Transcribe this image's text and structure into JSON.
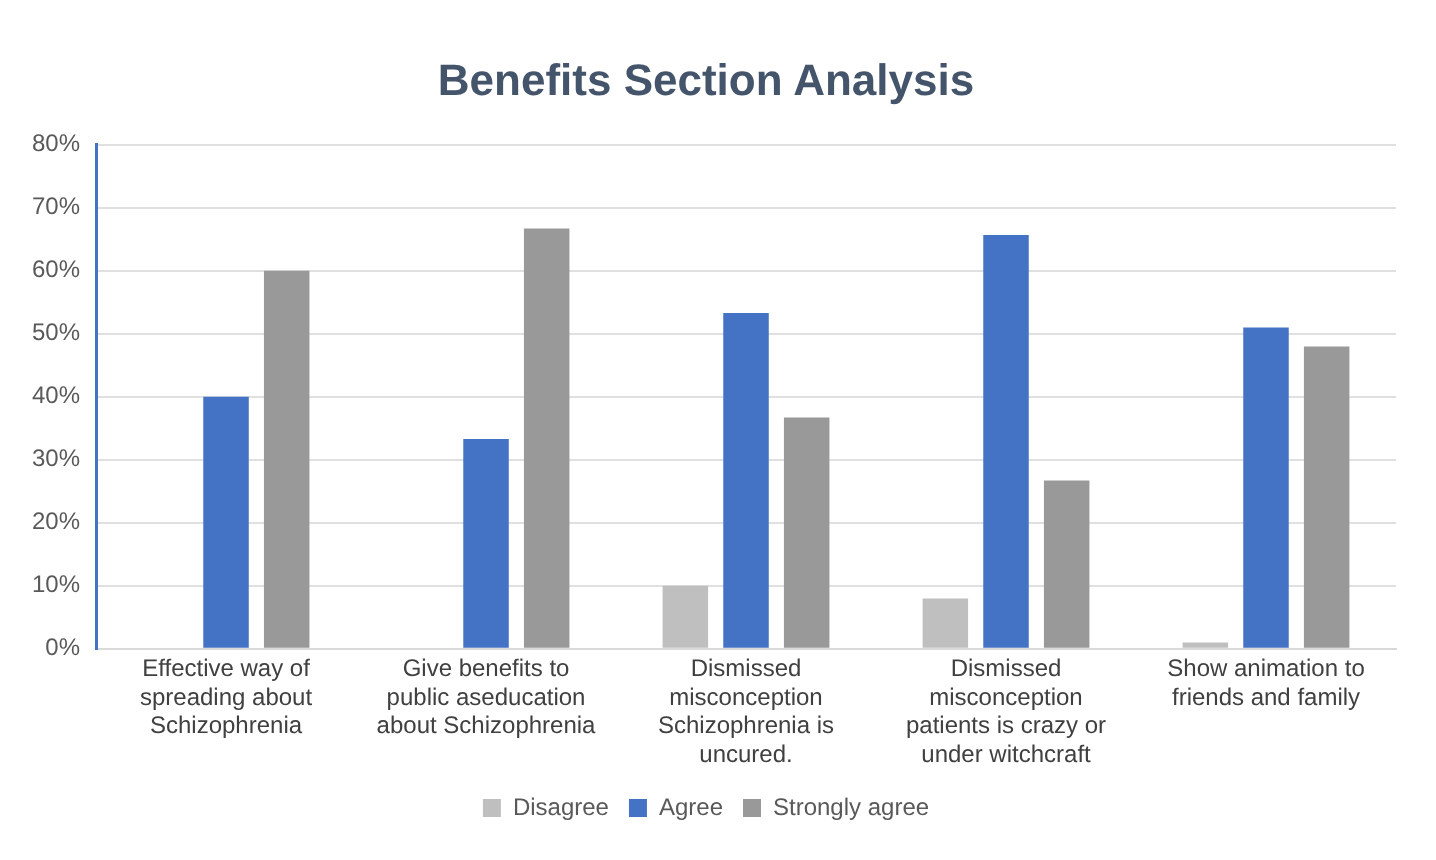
{
  "chart_data": {
    "type": "bar",
    "title": "Benefits Section Analysis",
    "categories": [
      "Effective way of spreading about Schizophrenia",
      "Give benefits to public aseducation about Schizophrenia",
      "Dismissed misconception Schizophrenia is uncured.",
      "Dismissed misconception patients is crazy or under witchcraft",
      "Show animation to friends and family"
    ],
    "series": [
      {
        "name": "Disagree",
        "color": "#bfbfbf",
        "values": [
          0,
          0,
          10,
          8,
          1
        ]
      },
      {
        "name": "Agree",
        "color": "#4472c4",
        "values": [
          40,
          33.3,
          53.3,
          65.7,
          51
        ]
      },
      {
        "name": "Strongly agree",
        "color": "#999999",
        "values": [
          60,
          66.7,
          36.7,
          26.7,
          48
        ]
      }
    ],
    "ylim": [
      0,
      80
    ],
    "yticks": [
      {
        "value": 0,
        "label": "0%"
      },
      {
        "value": 10,
        "label": "10%"
      },
      {
        "value": 20,
        "label": "20%"
      },
      {
        "value": 30,
        "label": "30%"
      },
      {
        "value": 40,
        "label": "40%"
      },
      {
        "value": 50,
        "label": "50%"
      },
      {
        "value": 60,
        "label": "60%"
      },
      {
        "value": 70,
        "label": "70%"
      },
      {
        "value": 80,
        "label": "80%"
      }
    ],
    "grid": "y",
    "legend": "bottom"
  }
}
